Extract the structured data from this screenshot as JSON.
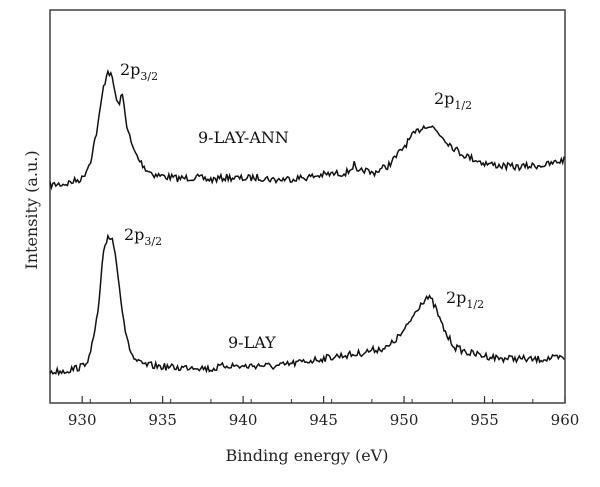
{
  "chart_data": {
    "type": "line",
    "title": "",
    "xlabel": "Binding energy (eV)",
    "ylabel": "Intensity (a.u.)",
    "xlim": [
      928,
      960
    ],
    "xticks": [
      930,
      935,
      940,
      945,
      950,
      955,
      960
    ],
    "y_ticks_shown": false,
    "grid": false,
    "series": [
      {
        "label": "9-LAY-ANN",
        "x": [
          928,
          929,
          930,
          930.5,
          931,
          931.3,
          931.6,
          931.9,
          932.2,
          932.5,
          932.8,
          933.1,
          933.5,
          934,
          934.5,
          935,
          936,
          937,
          938,
          939,
          940,
          941,
          942,
          943,
          944,
          945,
          946,
          946.5,
          946.9,
          947.1,
          947.5,
          948,
          949,
          949.5,
          950,
          950.5,
          951,
          951.4,
          951.8,
          952.2,
          952.6,
          953,
          953.5,
          954,
          955,
          956,
          957,
          958,
          959,
          960
        ],
        "y": [
          0.0,
          0.01,
          0.05,
          0.18,
          0.48,
          0.75,
          0.9,
          0.82,
          0.62,
          0.7,
          0.45,
          0.3,
          0.2,
          0.12,
          0.08,
          0.07,
          0.05,
          0.06,
          0.04,
          0.06,
          0.05,
          0.06,
          0.04,
          0.05,
          0.06,
          0.08,
          0.09,
          0.1,
          0.16,
          0.08,
          0.12,
          0.09,
          0.15,
          0.22,
          0.3,
          0.38,
          0.44,
          0.47,
          0.45,
          0.4,
          0.35,
          0.3,
          0.25,
          0.22,
          0.17,
          0.15,
          0.14,
          0.15,
          0.16,
          0.2
        ]
      },
      {
        "label": "9-LAY",
        "x": [
          928,
          929,
          930,
          930.5,
          931,
          931.3,
          931.6,
          931.9,
          932.2,
          932.5,
          932.8,
          933.2,
          933.6,
          934,
          935,
          936,
          937,
          938,
          939,
          940,
          941,
          942,
          943,
          944,
          945,
          946,
          947,
          948,
          949,
          949.5,
          950,
          950.5,
          951,
          951.4,
          951.7,
          952,
          952.3,
          952.7,
          953.2,
          954,
          955,
          956,
          957,
          958,
          959,
          960
        ],
        "y": [
          0.0,
          0.01,
          0.04,
          0.12,
          0.45,
          0.85,
          1.0,
          0.98,
          0.75,
          0.45,
          0.22,
          0.1,
          0.06,
          0.05,
          0.04,
          0.03,
          0.04,
          0.02,
          0.05,
          0.04,
          0.05,
          0.04,
          0.06,
          0.08,
          0.1,
          0.12,
          0.13,
          0.16,
          0.18,
          0.24,
          0.3,
          0.4,
          0.5,
          0.55,
          0.53,
          0.46,
          0.36,
          0.26,
          0.18,
          0.14,
          0.12,
          0.1,
          0.1,
          0.09,
          0.1,
          0.1
        ]
      }
    ],
    "annotations": [
      {
        "main": "2p",
        "sub": "3/2",
        "series": "9-LAY-ANN",
        "near_x": 931.7
      },
      {
        "main": "2p",
        "sub": "1/2",
        "series": "9-LAY-ANN",
        "near_x": 951.8
      },
      {
        "main": "2p",
        "sub": "3/2",
        "series": "9-LAY",
        "near_x": 932.0
      },
      {
        "main": "2p",
        "sub": "1/2",
        "series": "9-LAY",
        "near_x": 951.9
      }
    ]
  }
}
